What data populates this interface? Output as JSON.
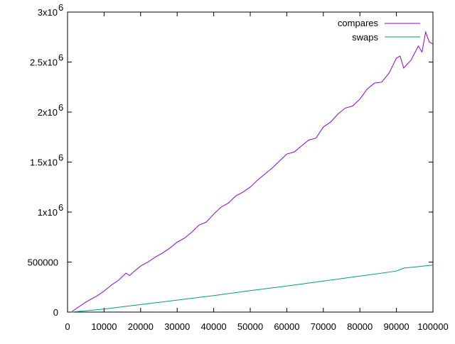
{
  "chart_data": {
    "type": "line",
    "title": "",
    "xlabel": "",
    "ylabel": "",
    "xlim": [
      0,
      100000
    ],
    "ylim": [
      0,
      3000000
    ],
    "grid": false,
    "legend_position": "top-right",
    "x_ticks": [
      {
        "value": 0,
        "label": "0"
      },
      {
        "value": 10000,
        "label": "10000"
      },
      {
        "value": 20000,
        "label": "20000"
      },
      {
        "value": 30000,
        "label": "30000"
      },
      {
        "value": 40000,
        "label": "40000"
      },
      {
        "value": 50000,
        "label": "50000"
      },
      {
        "value": 60000,
        "label": "60000"
      },
      {
        "value": 70000,
        "label": "70000"
      },
      {
        "value": 80000,
        "label": "80000"
      },
      {
        "value": 90000,
        "label": "90000"
      },
      {
        "value": 100000,
        "label": "100000"
      }
    ],
    "y_ticks": [
      {
        "value": 0,
        "label": "0",
        "sup": ""
      },
      {
        "value": 500000,
        "label": "500000",
        "sup": ""
      },
      {
        "value": 1000000,
        "label": "1x10",
        "sup": "6"
      },
      {
        "value": 1500000,
        "label": "1.5x10",
        "sup": "6"
      },
      {
        "value": 2000000,
        "label": "2x10",
        "sup": "6"
      },
      {
        "value": 2500000,
        "label": "2.5x10",
        "sup": "6"
      },
      {
        "value": 3000000,
        "label": "3x10",
        "sup": "6"
      }
    ],
    "series": [
      {
        "name": "compares",
        "color": "#9400d3",
        "x": [
          1000,
          5000,
          8000,
          10000,
          12000,
          14000,
          16000,
          17000,
          18000,
          20000,
          22000,
          24000,
          26000,
          28000,
          30000,
          32000,
          34000,
          36000,
          38000,
          40000,
          42000,
          44000,
          46000,
          48000,
          50000,
          52000,
          54000,
          56000,
          58000,
          60000,
          62000,
          64000,
          66000,
          68000,
          70000,
          72000,
          74000,
          76000,
          78000,
          80000,
          82000,
          84000,
          86000,
          88000,
          90000,
          91000,
          92000,
          94000,
          96000,
          97000,
          98000,
          99000,
          100000
        ],
        "values": [
          0,
          100000,
          160000,
          210000,
          270000,
          320000,
          390000,
          365000,
          400000,
          460000,
          500000,
          550000,
          590000,
          640000,
          700000,
          740000,
          800000,
          870000,
          900000,
          980000,
          1050000,
          1090000,
          1160000,
          1200000,
          1250000,
          1320000,
          1380000,
          1440000,
          1510000,
          1580000,
          1600000,
          1660000,
          1720000,
          1740000,
          1850000,
          1900000,
          1980000,
          2040000,
          2060000,
          2130000,
          2230000,
          2290000,
          2300000,
          2390000,
          2540000,
          2560000,
          2440000,
          2520000,
          2660000,
          2600000,
          2800000,
          2700000,
          2680000
        ]
      },
      {
        "name": "swaps",
        "color": "#009e73",
        "x": [
          1000,
          10000,
          20000,
          30000,
          40000,
          50000,
          60000,
          70000,
          80000,
          90000,
          92000,
          100000
        ],
        "values": [
          0,
          30000,
          75000,
          120000,
          165000,
          215000,
          260000,
          310000,
          360000,
          410000,
          440000,
          470000
        ]
      }
    ]
  }
}
